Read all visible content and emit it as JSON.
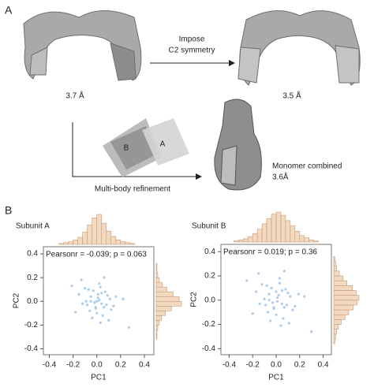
{
  "panel_a": {
    "label": "A",
    "left_resolution": "3.7 Å",
    "step_line1": "Impose",
    "step_line2": "C2 symmetry",
    "right_resolution": "3.5 Å",
    "body_b": "B",
    "body_a": "A",
    "method": "Multi-body refinement",
    "result_line1": "Monomer combined",
    "result_line2": "3.6Å"
  },
  "panel_b": {
    "label": "B"
  },
  "chart_data": [
    {
      "type": "scatter",
      "title": "Subunit A",
      "annotation": "Pearsonr = -0.039; p = 0.063",
      "x_label": "PC1",
      "y_label": "PC2",
      "color": "#9dc3e6",
      "x": [
        0.02,
        -0.05,
        0.08,
        -0.01,
        0.04,
        -0.09,
        0.11,
        0.0,
        -0.03,
        0.06,
        -0.12,
        0.03,
        0.09,
        -0.06,
        0.01,
        -0.02,
        0.14,
        -0.15,
        0.05,
        -0.07,
        0.07,
        -0.04,
        0.02,
        0.12,
        -0.1,
        0.0,
        0.03,
        -0.08,
        0.16,
        -0.18,
        0.22,
        -0.21,
        0.1,
        -0.13,
        0.04,
        0.01,
        -0.01,
        0.06,
        -0.05,
        0.27
      ],
      "y": [
        0.01,
        0.04,
        -0.03,
        -0.06,
        0.07,
        0.0,
        0.02,
        -0.1,
        0.09,
        -0.05,
        -0.02,
        0.12,
        0.05,
        -0.08,
        0.03,
        -0.01,
        -0.04,
        0.06,
        -0.12,
        0.1,
        0.08,
        -0.14,
        0.15,
        -0.07,
        0.11,
        0.0,
        -0.18,
        -0.03,
        0.04,
        -0.09,
        0.02,
        0.13,
        -0.16,
        0.18,
        -0.02,
        0.06,
        -0.05,
        0.2,
        0.0,
        -0.22
      ],
      "xlim": [
        -0.45,
        0.48
      ],
      "ylim": [
        -0.45,
        0.46
      ],
      "xticks": [
        -0.4,
        -0.2,
        {
          "value": 0,
          "label": "0.0"
        },
        0.2,
        0.4
      ],
      "yticks": [
        -0.4,
        -0.2,
        {
          "value": 0,
          "label": "0.0"
        },
        0.2,
        0.4
      ],
      "hist_color": "#f3d9bf",
      "hist_edge": "#c49a74",
      "x_hist": {
        "bins": [
          -0.32,
          -0.28,
          -0.24,
          -0.2,
          -0.16,
          -0.12,
          -0.08,
          -0.04,
          0.0,
          0.04,
          0.08,
          0.12,
          0.16,
          0.2,
          0.24,
          0.28,
          0.32
        ],
        "counts": [
          1,
          2,
          3,
          5,
          8,
          14,
          22,
          30,
          34,
          24,
          15,
          9,
          5,
          3,
          2,
          1
        ]
      },
      "y_hist": {
        "bins": [
          -0.32,
          -0.28,
          -0.24,
          -0.2,
          -0.16,
          -0.12,
          -0.08,
          -0.04,
          0.0,
          0.04,
          0.08,
          0.12,
          0.16,
          0.2,
          0.24,
          0.28,
          0.32
        ],
        "counts": [
          1,
          1,
          2,
          4,
          7,
          12,
          20,
          33,
          30,
          22,
          14,
          8,
          4,
          2,
          1,
          1
        ]
      }
    },
    {
      "type": "scatter",
      "title": "Subunit B",
      "annotation": "Pearsonr = 0.019; p = 0.36",
      "x_label": "PC1",
      "y_label": "PC2",
      "color": "#9dc3e6",
      "x": [
        0.01,
        -0.06,
        0.09,
        -0.02,
        0.05,
        -0.1,
        0.12,
        0.0,
        -0.04,
        0.07,
        -0.14,
        0.03,
        0.1,
        -0.07,
        0.02,
        -0.03,
        0.16,
        -0.17,
        0.06,
        -0.08,
        0.08,
        -0.05,
        0.03,
        0.14,
        -0.12,
        0.01,
        0.04,
        -0.09,
        0.19,
        -0.2,
        0.24,
        -0.25,
        0.11,
        -0.15,
        0.05,
        0.0,
        -0.02,
        0.07,
        -0.06,
        0.3
      ],
      "y": [
        0.02,
        0.05,
        -0.04,
        -0.07,
        0.08,
        0.01,
        0.03,
        -0.12,
        0.1,
        -0.06,
        -0.03,
        0.14,
        0.06,
        -0.1,
        0.04,
        -0.02,
        -0.05,
        0.07,
        -0.15,
        0.12,
        0.09,
        -0.17,
        0.18,
        -0.08,
        0.13,
        -0.01,
        -0.21,
        -0.04,
        0.05,
        -0.11,
        0.03,
        0.16,
        -0.19,
        0.22,
        -0.03,
        0.07,
        -0.06,
        0.24,
        0.0,
        -0.26
      ],
      "xlim": [
        -0.47,
        0.47
      ],
      "ylim": [
        -0.45,
        0.46
      ],
      "xticks": [
        -0.4,
        -0.2,
        {
          "value": 0,
          "label": "0.0"
        },
        0.2,
        0.4
      ],
      "yticks": [
        -0.4,
        -0.2,
        {
          "value": 0,
          "label": "0.0"
        },
        0.2,
        0.4
      ],
      "hist_color": "#f3d9bf",
      "hist_edge": "#c49a74",
      "x_hist": {
        "bins": [
          -0.36,
          -0.32,
          -0.28,
          -0.24,
          -0.2,
          -0.16,
          -0.12,
          -0.08,
          -0.04,
          0.0,
          0.04,
          0.08,
          0.12,
          0.16,
          0.2,
          0.24,
          0.28,
          0.32,
          0.36
        ],
        "counts": [
          1,
          2,
          3,
          5,
          8,
          12,
          17,
          22,
          26,
          28,
          25,
          20,
          15,
          10,
          6,
          4,
          2,
          1
        ]
      },
      "y_hist": {
        "bins": [
          -0.36,
          -0.32,
          -0.28,
          -0.24,
          -0.2,
          -0.16,
          -0.12,
          -0.08,
          -0.04,
          0.0,
          0.04,
          0.08,
          0.12,
          0.16,
          0.2,
          0.24,
          0.28,
          0.32,
          0.36
        ],
        "counts": [
          1,
          2,
          3,
          5,
          8,
          12,
          16,
          21,
          25,
          27,
          24,
          20,
          14,
          10,
          6,
          3,
          2,
          1
        ]
      }
    }
  ]
}
